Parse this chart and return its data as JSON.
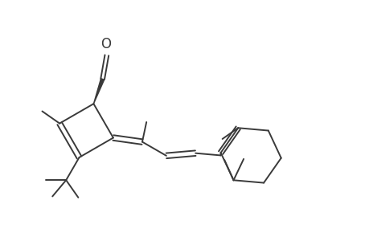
{
  "background_color": "#ffffff",
  "line_color": "#3a3a3a",
  "bond_lw": 1.4,
  "figsize": [
    4.6,
    3.0
  ],
  "dpi": 100,
  "O_fontsize": 12
}
